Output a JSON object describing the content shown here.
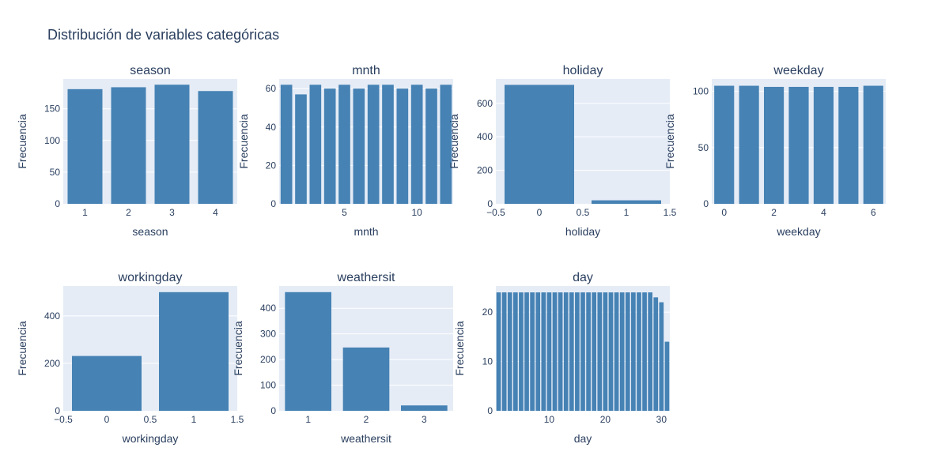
{
  "figure": {
    "title": "Distribución de variables categóricas",
    "bar_color": "#4682b4",
    "plot_bg": "#e5ecf6",
    "text_color": "#2a3f5f"
  },
  "chart_data": [
    {
      "type": "bar",
      "title": "season",
      "xlabel": "season",
      "ylabel": "Frecuencia",
      "x": [
        1,
        2,
        3,
        4
      ],
      "values": [
        181,
        184,
        188,
        178
      ],
      "xlim": [
        0.5,
        4.5
      ],
      "ylim": [
        0,
        197
      ],
      "xticks": [
        1,
        2,
        3,
        4
      ],
      "xtick_labels": [
        "1",
        "2",
        "3",
        "4"
      ],
      "yticks": [
        0,
        50,
        100,
        150
      ],
      "ytick_labels": [
        "0",
        "50",
        "100",
        "150"
      ],
      "bar_width": 0.8,
      "grid": true
    },
    {
      "type": "bar",
      "title": "mnth",
      "xlabel": "mnth",
      "ylabel": "Frecuencia",
      "x": [
        1,
        2,
        3,
        4,
        5,
        6,
        7,
        8,
        9,
        10,
        11,
        12
      ],
      "values": [
        62,
        57,
        62,
        60,
        62,
        60,
        62,
        62,
        60,
        62,
        60,
        62
      ],
      "xlim": [
        0.5,
        12.5
      ],
      "ylim": [
        0,
        65
      ],
      "xticks": [
        5,
        10
      ],
      "xtick_labels": [
        "5",
        "10"
      ],
      "yticks": [
        0,
        20,
        40,
        60
      ],
      "ytick_labels": [
        "0",
        "20",
        "40",
        "60"
      ],
      "bar_width": 0.8,
      "grid": true
    },
    {
      "type": "bar",
      "title": "holiday",
      "xlabel": "holiday",
      "ylabel": "Frecuencia",
      "x": [
        0,
        1
      ],
      "values": [
        710,
        21
      ],
      "xlim": [
        -0.5,
        1.5
      ],
      "ylim": [
        0,
        745
      ],
      "xticks": [
        -0.5,
        0,
        0.5,
        1,
        1.5
      ],
      "xtick_labels": [
        "−0.5",
        "0",
        "0.5",
        "1",
        "1.5"
      ],
      "yticks": [
        0,
        200,
        400,
        600
      ],
      "ytick_labels": [
        "0",
        "200",
        "400",
        "600"
      ],
      "bar_width": 0.8,
      "grid": true
    },
    {
      "type": "bar",
      "title": "weekday",
      "xlabel": "weekday",
      "ylabel": "Frecuencia",
      "x": [
        0,
        1,
        2,
        3,
        4,
        5,
        6
      ],
      "values": [
        105,
        105,
        104,
        104,
        104,
        104,
        105
      ],
      "xlim": [
        -0.5,
        6.5
      ],
      "ylim": [
        0,
        111
      ],
      "xticks": [
        0,
        2,
        4,
        6
      ],
      "xtick_labels": [
        "0",
        "2",
        "4",
        "6"
      ],
      "yticks": [
        0,
        50,
        100
      ],
      "ytick_labels": [
        "0",
        "50",
        "100"
      ],
      "bar_width": 0.8,
      "grid": true
    },
    {
      "type": "bar",
      "title": "workingday",
      "xlabel": "workingday",
      "ylabel": "Frecuencia",
      "x": [
        0,
        1
      ],
      "values": [
        231,
        500
      ],
      "xlim": [
        -0.5,
        1.5
      ],
      "ylim": [
        0,
        526
      ],
      "xticks": [
        -0.5,
        0,
        0.5,
        1,
        1.5
      ],
      "xtick_labels": [
        "−0.5",
        "0",
        "0.5",
        "1",
        "1.5"
      ],
      "yticks": [
        0,
        200,
        400
      ],
      "ytick_labels": [
        "0",
        "200",
        "400"
      ],
      "bar_width": 0.8,
      "grid": true
    },
    {
      "type": "bar",
      "title": "weathersit",
      "xlabel": "weathersit",
      "ylabel": "Frecuencia",
      "x": [
        1,
        2,
        3
      ],
      "values": [
        463,
        247,
        21
      ],
      "xlim": [
        0.5,
        3.5
      ],
      "ylim": [
        0,
        487
      ],
      "xticks": [
        1,
        2,
        3
      ],
      "xtick_labels": [
        "1",
        "2",
        "3"
      ],
      "yticks": [
        0,
        100,
        200,
        300,
        400
      ],
      "ytick_labels": [
        "0",
        "100",
        "200",
        "300",
        "400"
      ],
      "bar_width": 0.8,
      "grid": true
    },
    {
      "type": "bar",
      "title": "day",
      "xlabel": "day",
      "ylabel": "Frecuencia",
      "x": [
        1,
        2,
        3,
        4,
        5,
        6,
        7,
        8,
        9,
        10,
        11,
        12,
        13,
        14,
        15,
        16,
        17,
        18,
        19,
        20,
        21,
        22,
        23,
        24,
        25,
        26,
        27,
        28,
        29,
        30,
        31
      ],
      "values": [
        24,
        24,
        24,
        24,
        24,
        24,
        24,
        24,
        24,
        24,
        24,
        24,
        24,
        24,
        24,
        24,
        24,
        24,
        24,
        24,
        24,
        24,
        24,
        24,
        24,
        24,
        24,
        24,
        23,
        22,
        14
      ],
      "xlim": [
        0.5,
        31.5
      ],
      "ylim": [
        0,
        25.3
      ],
      "xticks": [
        10,
        20,
        30
      ],
      "xtick_labels": [
        "10",
        "20",
        "30"
      ],
      "yticks": [
        0,
        10,
        20
      ],
      "ytick_labels": [
        "0",
        "10",
        "20"
      ],
      "bar_width": 0.8,
      "grid": true
    }
  ]
}
